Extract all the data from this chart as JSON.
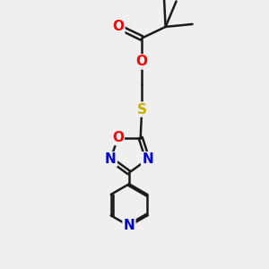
{
  "bg_color": "#efefef",
  "bond_color": "#1a1a1a",
  "bond_width": 1.8,
  "atom_colors": {
    "O": "#ff0000",
    "N": "#0000cc",
    "S": "#ccaa00",
    "C": "#1a1a1a"
  },
  "font_size_atoms": 11,
  "figsize": [
    3.0,
    3.0
  ],
  "dpi": 100
}
